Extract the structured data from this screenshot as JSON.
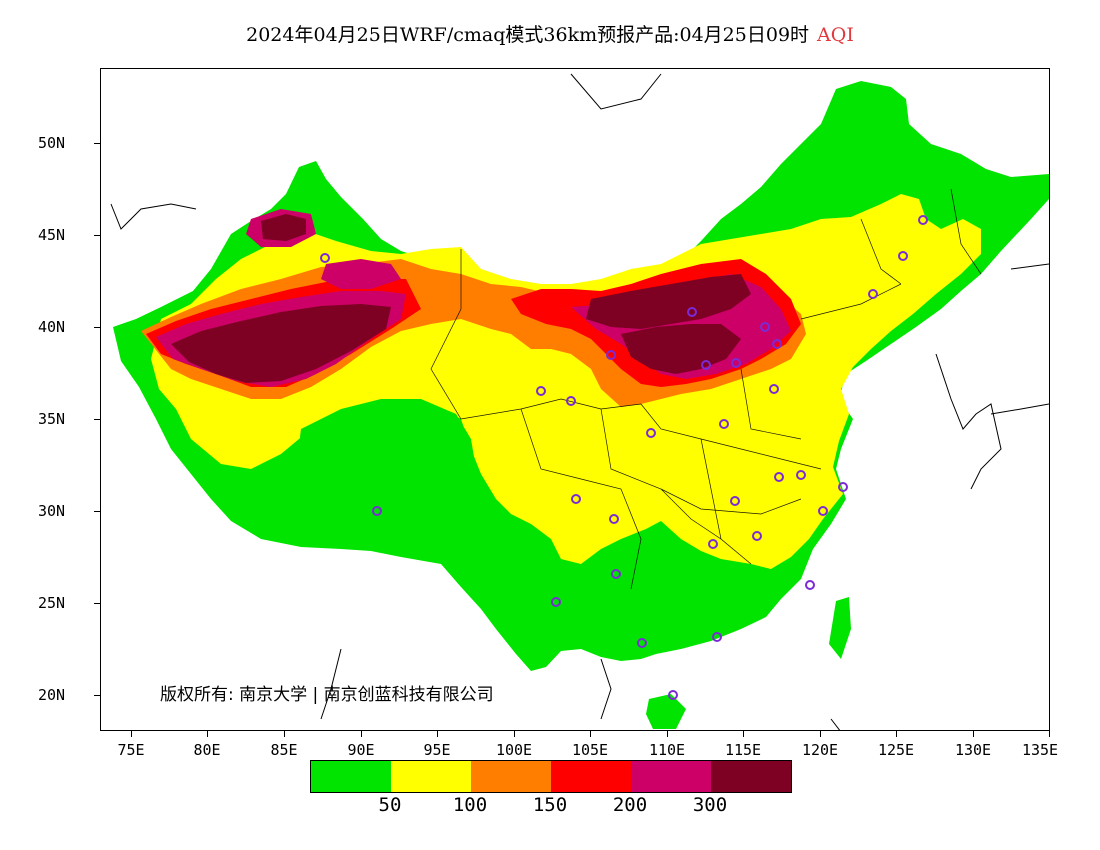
{
  "title": {
    "main": "2024年04月25日WRF/cmaq模式36km预报产品:04月25日09时",
    "variable": "AQI"
  },
  "map": {
    "lat_labels": [
      "50N",
      "45N",
      "40N",
      "35N",
      "30N",
      "25N",
      "20N"
    ],
    "lon_labels": [
      "75E",
      "80E",
      "85E",
      "90E",
      "95E",
      "100E",
      "105E",
      "110E",
      "115E",
      "120E",
      "125E",
      "130E",
      "135E"
    ],
    "lon_range": [
      73,
      135
    ],
    "lat_range": [
      18,
      54
    ],
    "copyright": "版权所有: 南京大学 | 南京创蓝科技有限公司"
  },
  "legend": {
    "colors": [
      "#00e400",
      "#ffff00",
      "#ff7e00",
      "#ff0000",
      "#cc0066",
      "#7e0023"
    ],
    "labels": [
      "50",
      "100",
      "150",
      "200",
      "300"
    ]
  },
  "colors": {
    "green": "#00e400",
    "yellow": "#ffff00",
    "orange": "#ff7e00",
    "red": "#ff0000",
    "purple": "#cc0066",
    "maroon": "#7e0023",
    "station": "#7b2bd6"
  }
}
